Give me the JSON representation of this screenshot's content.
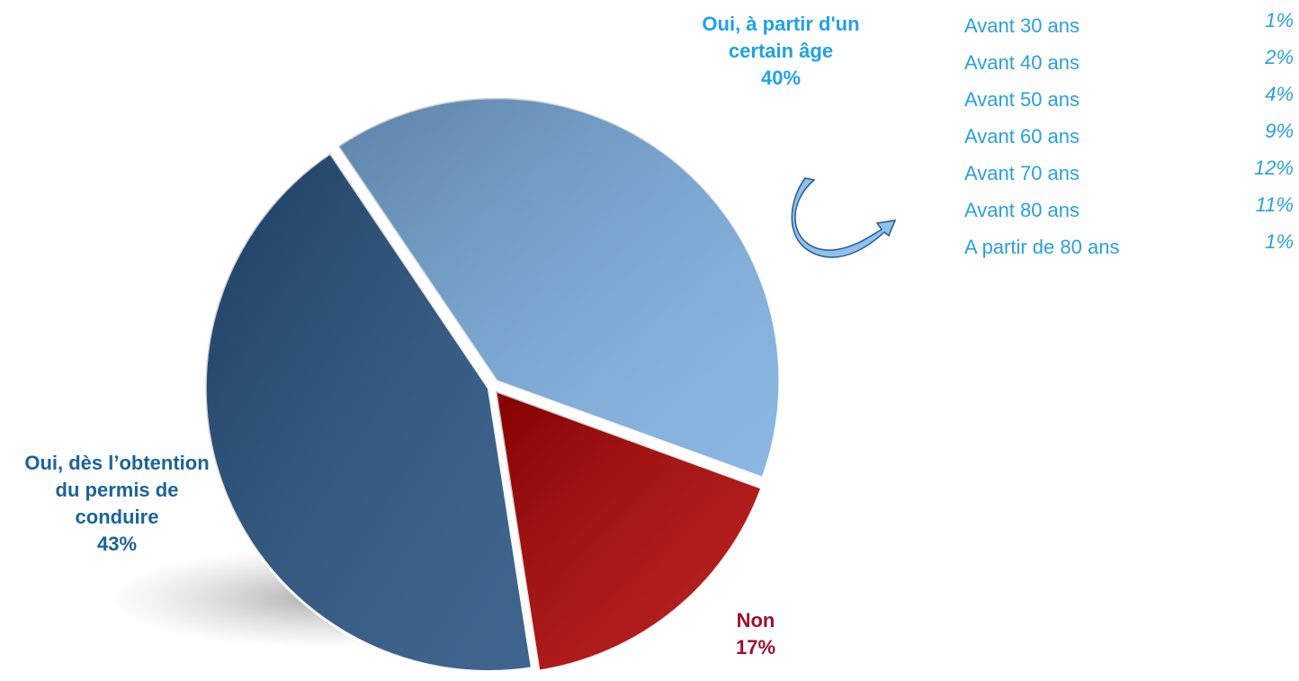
{
  "chart_data": {
    "type": "pie",
    "categories": [
      "Oui, à partir d'un certain âge",
      "Non",
      "Oui, dès l’obtention du permis de conduire"
    ],
    "values": [
      40,
      17,
      43
    ],
    "value_labels": [
      "40%",
      "17%",
      "43%"
    ],
    "colors": [
      "#7aaee0",
      "#b00000",
      "#24507f"
    ]
  },
  "breakdown": {
    "categories": [
      "Avant 30 ans",
      "Avant 40 ans",
      "Avant 50 ans",
      "Avant 60 ans",
      "Avant 70 ans",
      "Avant 80 ans",
      "A partir de 80 ans"
    ],
    "values": [
      "1%",
      "2%",
      "4%",
      "9%",
      "12%",
      "11%",
      "1%"
    ]
  }
}
